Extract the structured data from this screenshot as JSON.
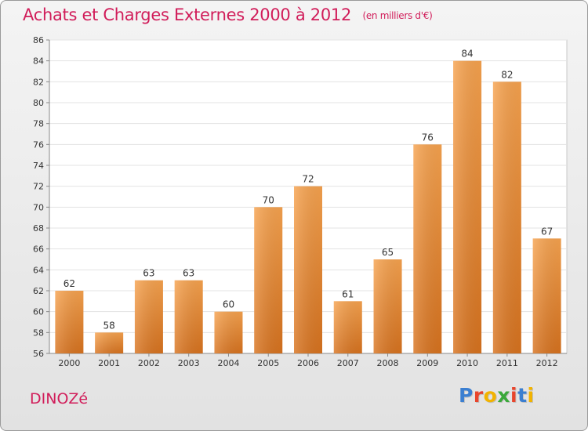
{
  "chart_data": {
    "type": "bar",
    "title": "Achats et Charges Externes 2000 à 2012",
    "unit_label": "(en milliers d'€)",
    "categories": [
      "2000",
      "2001",
      "2002",
      "2003",
      "2004",
      "2005",
      "2006",
      "2007",
      "2008",
      "2009",
      "2010",
      "2011",
      "2012"
    ],
    "values": [
      62,
      58,
      63,
      63,
      60,
      70,
      72,
      61,
      65,
      76,
      84,
      82,
      67
    ],
    "ylim": [
      56,
      86
    ],
    "yticks": [
      56,
      58,
      60,
      62,
      64,
      66,
      68,
      70,
      72,
      74,
      76,
      78,
      80,
      82,
      84,
      86
    ],
    "grid": true,
    "bar_color_top": "#f7a34f",
    "bar_color_bottom": "#d8731f"
  },
  "footer": {
    "commune": "DINOZé",
    "logo_text": "Proxiti"
  },
  "colors": {
    "title": "#d11d5a",
    "logo_letters": [
      "#3b7fd1",
      "#e8452c",
      "#f2b300",
      "#3aa83a",
      "#e8452c",
      "#3b7fd1",
      "#f2b300"
    ]
  }
}
